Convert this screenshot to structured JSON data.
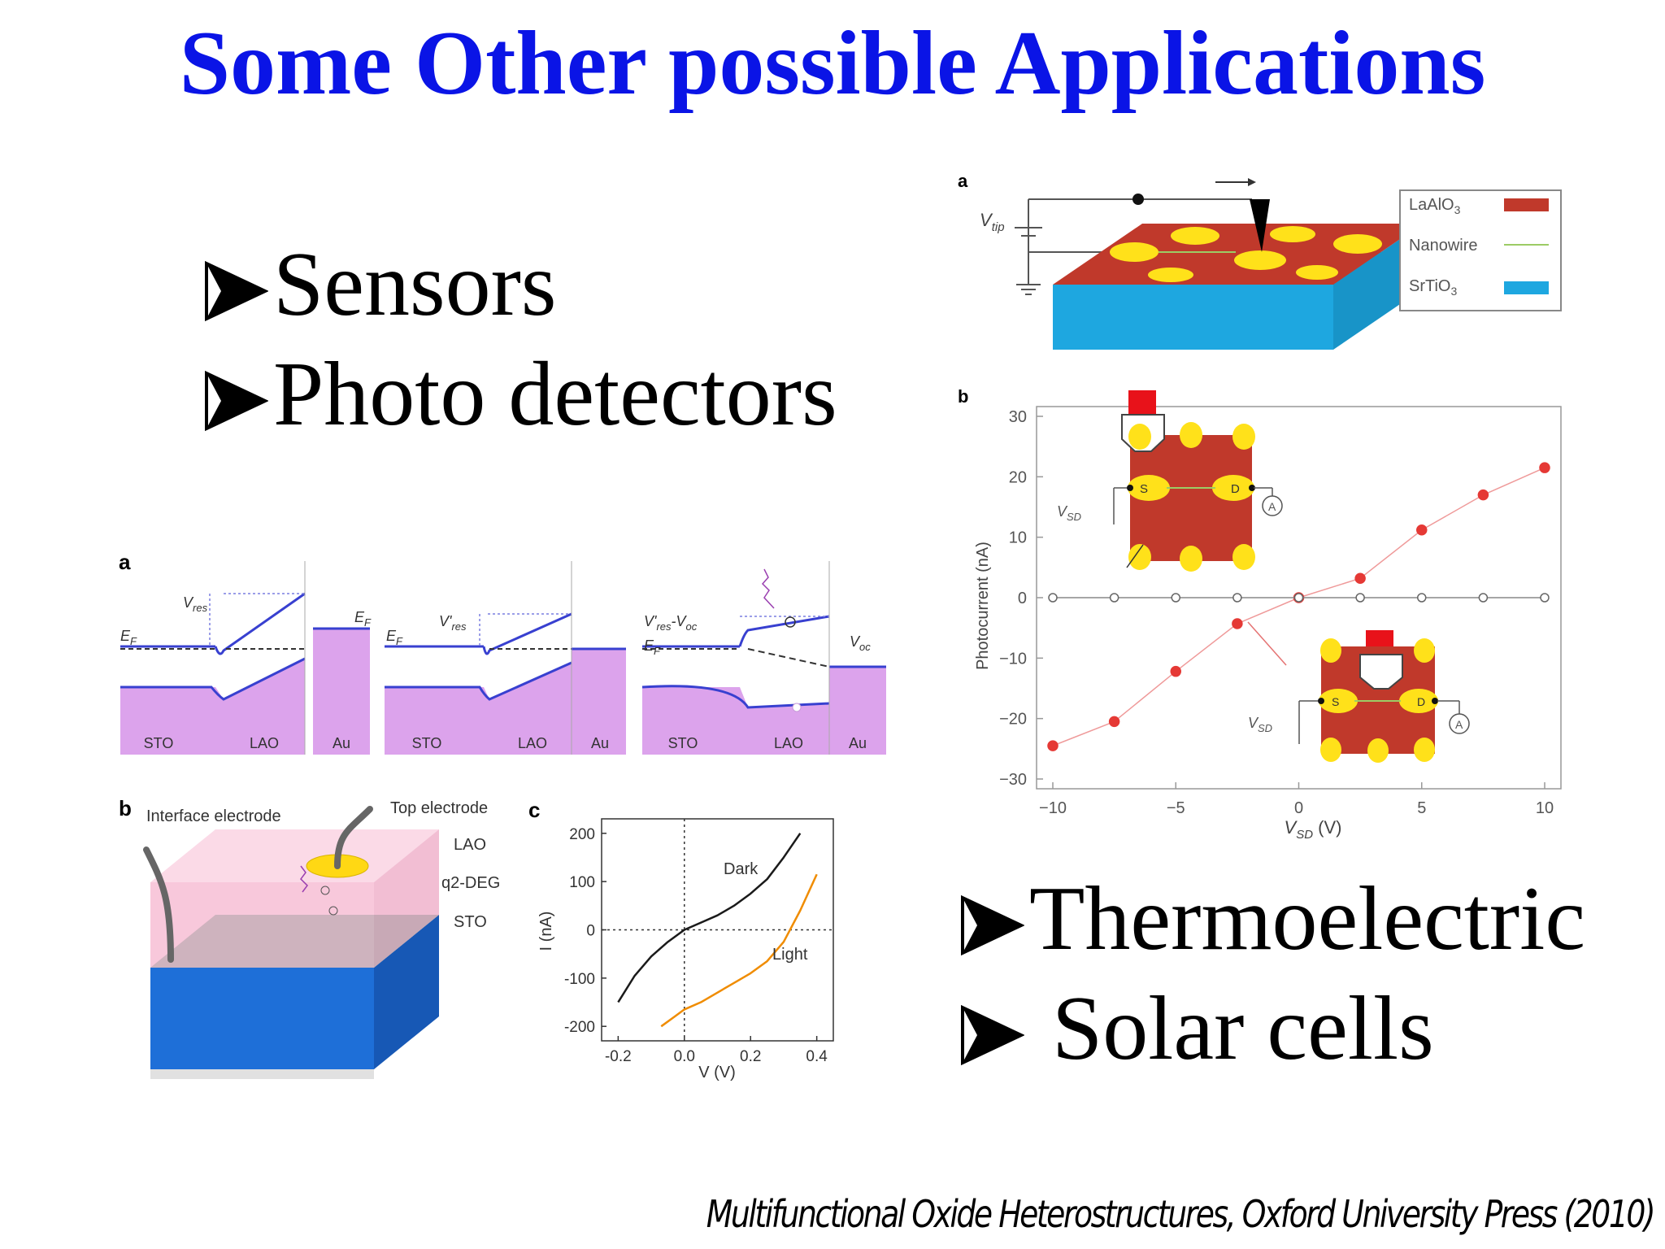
{
  "slide": {
    "title": "Some Other possible Applications",
    "bullets_top": [
      "Sensors",
      "Photo detectors"
    ],
    "bullets_bottom": [
      "Thermoelectric",
      " Solar cells"
    ],
    "citation": "Multifunctional Oxide Heterostructures, Oxford University Press (2010)"
  },
  "figure_top_right": {
    "panel_a": {
      "label": "a",
      "vtip_label": "V",
      "vtip_sub": "tip",
      "legend": [
        {
          "label": "LaAlO",
          "sub": "3",
          "color": "#c0392b"
        },
        {
          "label": "Nanowire",
          "sub": "",
          "color": "#9ccc65"
        },
        {
          "label": "SrTiO",
          "sub": "3",
          "color": "#1ea7e0"
        }
      ]
    },
    "panel_b": {
      "label": "b",
      "ylabel": "Photocurrent (nA)",
      "xlabel": "V",
      "xlabel_sub": "SD",
      "xlabel_unit": " (V)",
      "inset_labels": {
        "s": "S",
        "d": "D",
        "a": "A",
        "v": "V",
        "v_sub": "SD"
      }
    }
  },
  "figure_bottom_left": {
    "panel_a": {
      "label": "a",
      "diagrams": [
        {
          "vlabel": "V",
          "vsub": "res",
          "layers": [
            "STO",
            "LAO",
            "Au"
          ]
        },
        {
          "vlabel": "V'",
          "vsub": "res",
          "layers": [
            "STO",
            "LAO",
            "Au"
          ]
        },
        {
          "vlabel": "V'",
          "vsub": "res",
          "vextra": "-V",
          "vextra_sub": "oc",
          "layers": [
            "STO",
            "LAO",
            "Au"
          ]
        }
      ],
      "ef": "E",
      "ef_sub": "F",
      "voc": "V",
      "voc_sub": "oc"
    },
    "panel_b": {
      "label": "b",
      "interface_electrode": "Interface electrode",
      "top_electrode": "Top electrode",
      "layers": [
        "LAO",
        "q2-DEG",
        "STO"
      ]
    },
    "panel_c": {
      "label": "c",
      "ylabel": "I (nA)",
      "xlabel": "V (V)",
      "curve_dark": "Dark",
      "curve_light": "Light"
    }
  },
  "chart_data": [
    {
      "type": "scatter",
      "id": "photocurrent_vs_vsd",
      "xlim": [
        -10,
        10
      ],
      "ylim": [
        -30,
        30
      ],
      "xticks": [
        "−10",
        "−5",
        "0",
        "5",
        "10"
      ],
      "yticks": [
        "30",
        "20",
        "10",
        "0",
        "−10",
        "−20",
        "−30"
      ],
      "xtick_values": [
        -10,
        -5,
        0,
        5,
        10
      ],
      "ytick_values": [
        30,
        20,
        10,
        0,
        -10,
        -20,
        -30
      ],
      "series": [
        {
          "x": [
            -10,
            -7.5,
            -5,
            -2.5,
            0,
            2.5,
            5,
            7.5,
            10
          ],
          "y": [
            -24.5,
            -20.5,
            -12.2,
            -4.3,
            0,
            3.2,
            11.2,
            17,
            21.5
          ],
          "color": "#e53935",
          "filled": true
        },
        {
          "x": [
            -10,
            -7.5,
            -5,
            -2.5,
            0,
            2.5,
            5,
            7.5,
            10
          ],
          "y": [
            0,
            0,
            0,
            0,
            0,
            0,
            0,
            0,
            0
          ],
          "color": "#666666",
          "filled": false
        }
      ]
    },
    {
      "type": "line",
      "id": "iv_curves",
      "xlim": [
        -0.25,
        0.45
      ],
      "ylim": [
        -230,
        230
      ],
      "xticks": [
        "-0.2",
        "0.0",
        "0.2",
        "0.4"
      ],
      "yticks": [
        "200",
        "100",
        "0",
        "-100",
        "-200"
      ],
      "xtick_values": [
        -0.2,
        0.0,
        0.2,
        0.4
      ],
      "ytick_values": [
        200,
        100,
        0,
        -100,
        -200
      ],
      "series": [
        {
          "name": "Dark",
          "x": [
            -0.2,
            -0.15,
            -0.1,
            -0.05,
            0.0,
            0.05,
            0.1,
            0.15,
            0.2,
            0.25,
            0.3,
            0.35
          ],
          "y": [
            -150,
            -95,
            -55,
            -25,
            0,
            15,
            30,
            50,
            75,
            105,
            150,
            200
          ],
          "color": "#1a1a1a"
        },
        {
          "name": "Light",
          "x": [
            -0.07,
            -0.03,
            0.0,
            0.05,
            0.1,
            0.15,
            0.2,
            0.25,
            0.3,
            0.35,
            0.4
          ],
          "y": [
            -200,
            -180,
            -165,
            -150,
            -130,
            -110,
            -90,
            -65,
            -25,
            40,
            115
          ],
          "color": "#f08c00"
        }
      ]
    }
  ]
}
